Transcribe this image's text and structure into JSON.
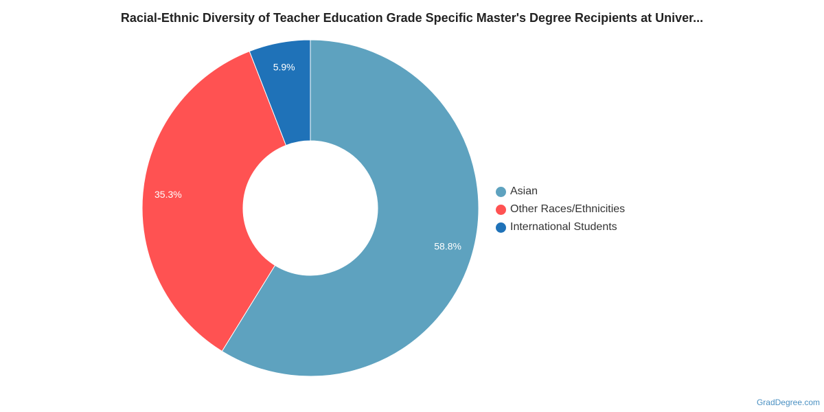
{
  "chart_data": {
    "type": "pie",
    "title": "Racial-Ethnic Diversity of Teacher Education Grade Specific Master's Degree Recipients at Univer...",
    "donut": true,
    "legend_position": "right",
    "slices": [
      {
        "label": "Asian",
        "value": 58.8,
        "value_label": "58.8%",
        "color": "#5ea2bf"
      },
      {
        "label": "Other Races/Ethnicities",
        "value": 35.3,
        "value_label": "35.3%",
        "color": "#ff5252"
      },
      {
        "label": "International Students",
        "value": 5.9,
        "value_label": "5.9%",
        "color": "#1f72b8"
      }
    ]
  },
  "watermark": "GradDegree.com"
}
